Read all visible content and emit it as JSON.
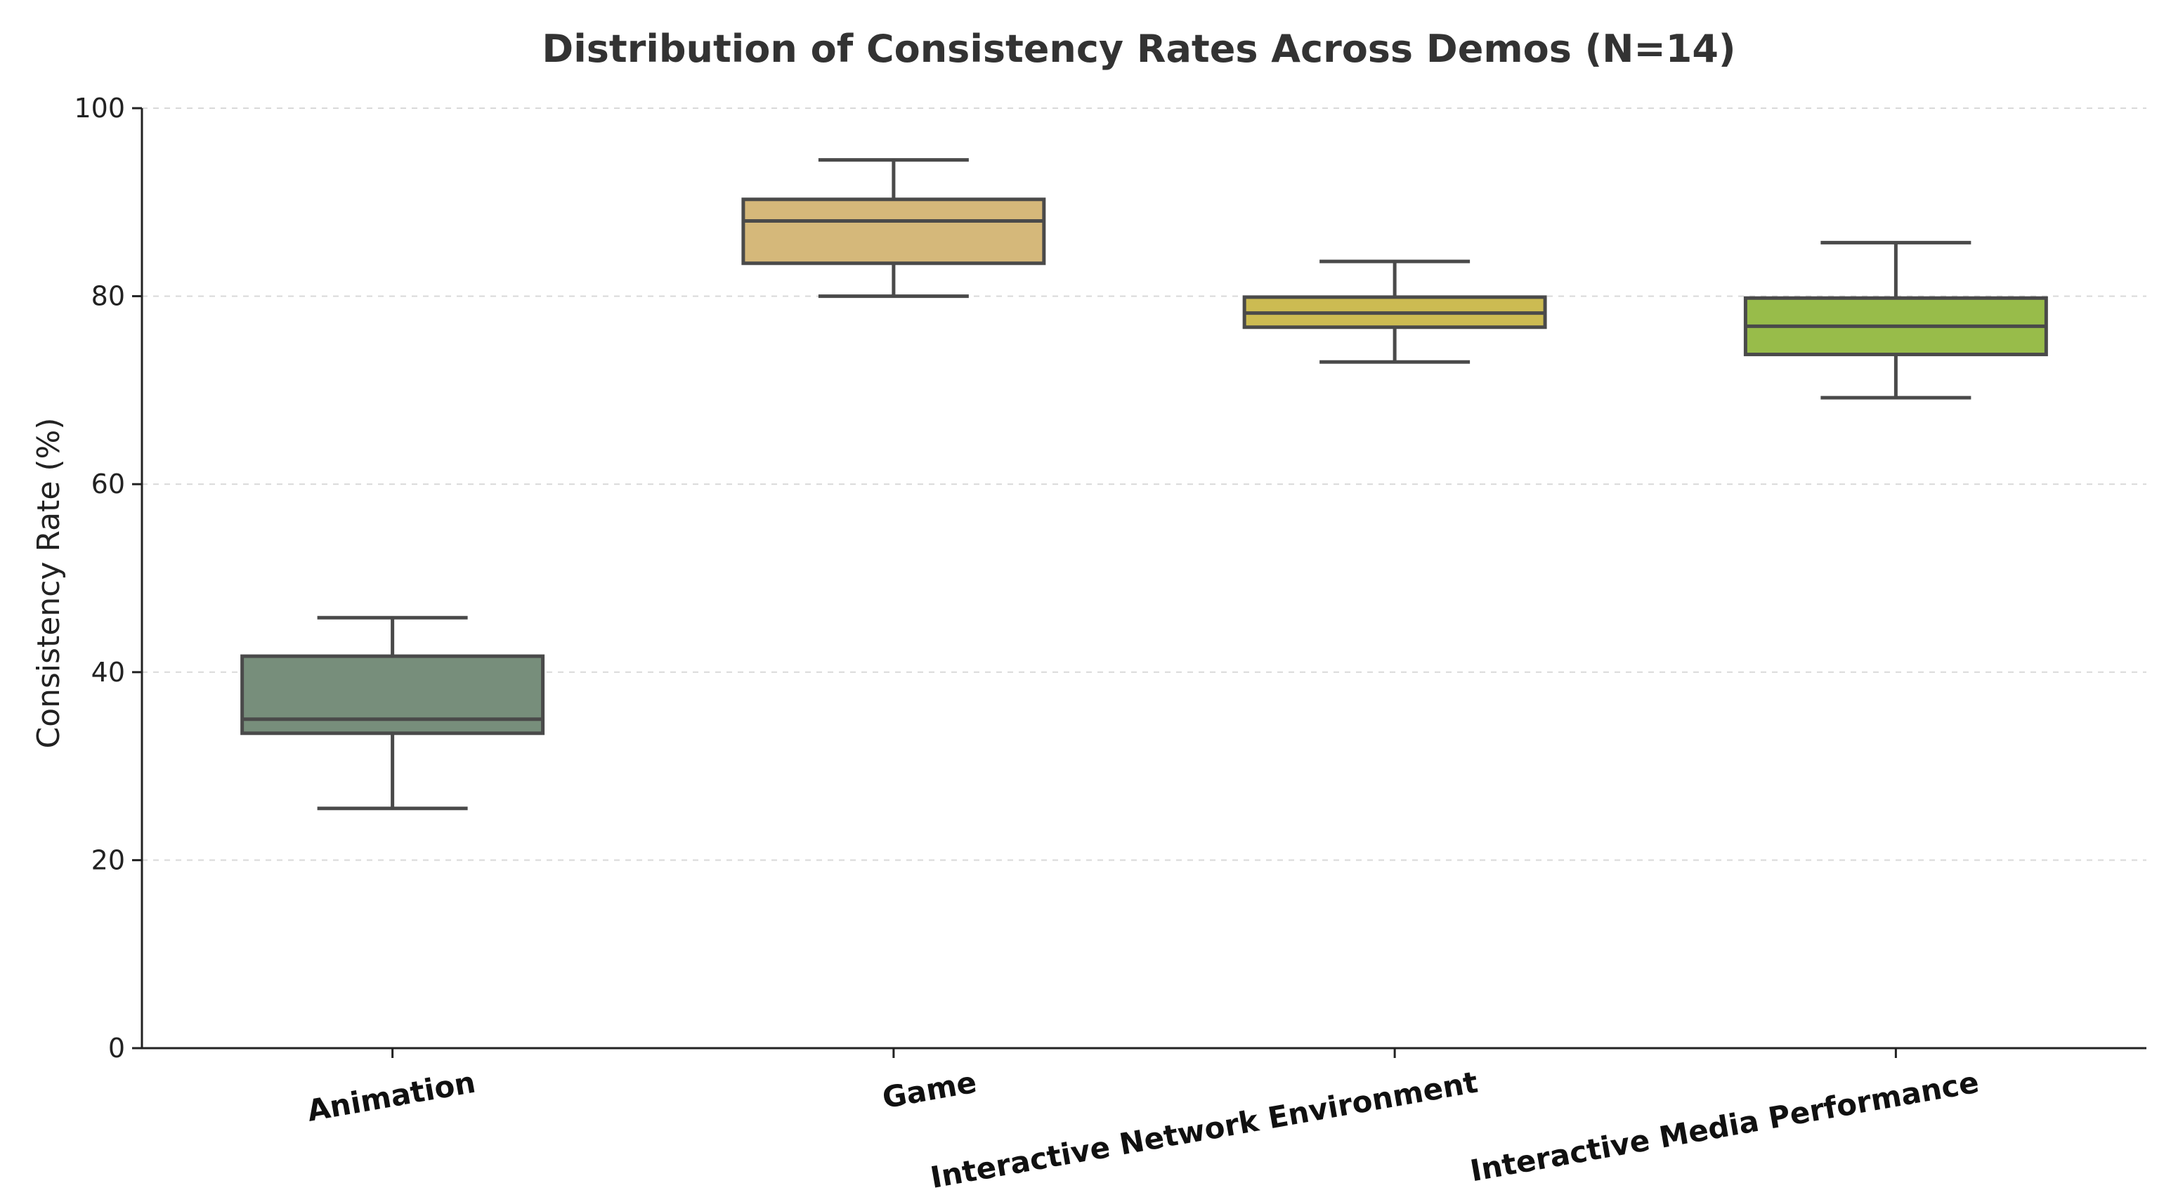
{
  "chart_data": {
    "type": "boxplot",
    "title": "Distribution of Consistency Rates Across Demos (N=14)",
    "xlabel": "",
    "ylabel": "Consistency Rate (%)",
    "ylim": [
      0,
      100
    ],
    "yticks": [
      0,
      20,
      40,
      60,
      80,
      100
    ],
    "grid": true,
    "categories": [
      "Animation",
      "Game",
      "Interactive Network Environment",
      "Interactive Media Performance"
    ],
    "boxes": [
      {
        "category": "Animation",
        "whisker_low": 25.5,
        "q1": 33.5,
        "median": 35.0,
        "q3": 41.7,
        "whisker_high": 45.8,
        "color": "#778e7b"
      },
      {
        "category": "Game",
        "whisker_low": 80.0,
        "q1": 83.5,
        "median": 88.0,
        "q3": 90.3,
        "whisker_high": 94.5,
        "color": "#d5b87a"
      },
      {
        "category": "Interactive Network Environment",
        "whisker_low": 73.0,
        "q1": 76.7,
        "median": 78.2,
        "q3": 79.9,
        "whisker_high": 83.7,
        "color": "#ccbb52"
      },
      {
        "category": "Interactive Media Performance",
        "whisker_low": 69.2,
        "q1": 73.8,
        "median": 76.8,
        "q3": 79.8,
        "whisker_high": 85.7,
        "color": "#98bc4a"
      }
    ]
  }
}
